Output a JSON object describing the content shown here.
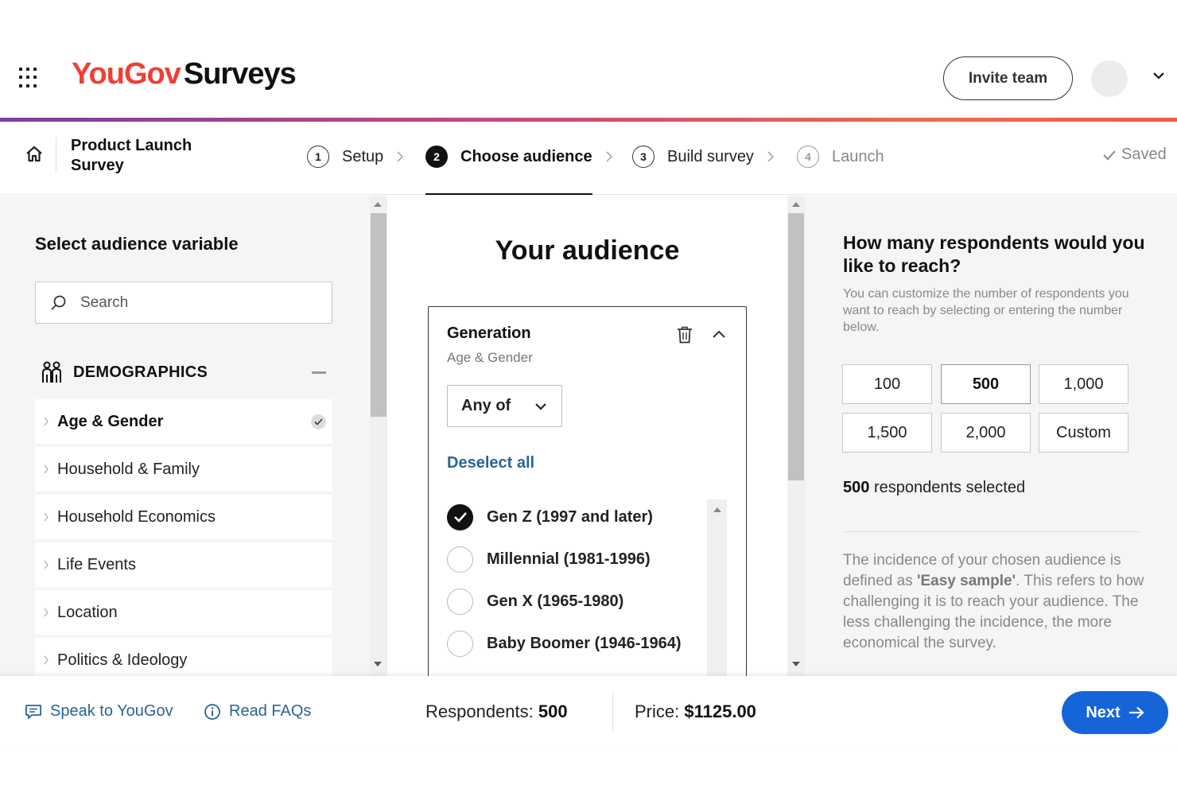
{
  "header": {
    "brand": "YouGov",
    "product": "Surveys",
    "invite_label": "Invite team"
  },
  "stepbar": {
    "project_title": "Product Launch Survey",
    "steps": [
      {
        "num": "1",
        "label": "Setup"
      },
      {
        "num": "2",
        "label": "Choose audience"
      },
      {
        "num": "3",
        "label": "Build survey"
      },
      {
        "num": "4",
        "label": "Launch"
      }
    ],
    "saved_label": "Saved"
  },
  "left": {
    "title": "Select audience variable",
    "search_placeholder": "Search",
    "section_label": "DEMOGRAPHICS",
    "categories": [
      {
        "label": "Age & Gender"
      },
      {
        "label": "Household & Family"
      },
      {
        "label": "Household Economics"
      },
      {
        "label": "Life Events"
      },
      {
        "label": "Location"
      },
      {
        "label": "Politics & Ideology"
      }
    ]
  },
  "middle": {
    "title": "Your audience",
    "card": {
      "title": "Generation",
      "subtitle": "Age & Gender",
      "mode": "Any of",
      "deselect_label": "Deselect all",
      "options": [
        {
          "label": "Gen Z (1997 and later)",
          "checked": true
        },
        {
          "label": "Millennial (1981-1996)",
          "checked": false
        },
        {
          "label": "Gen X (1965-1980)",
          "checked": false
        },
        {
          "label": "Baby Boomer (1946-1964)",
          "checked": false
        }
      ]
    }
  },
  "right": {
    "title": "How many respondents would you like to reach?",
    "description": "You can customize the number of respondents you want to reach by selecting or entering the number below.",
    "options": [
      "100",
      "500",
      "1,000",
      "1,500",
      "2,000",
      "Custom"
    ],
    "selected_count": "500",
    "selected_suffix": "respondents selected",
    "incidence_pre": "The incidence of your chosen audience is defined as ",
    "incidence_term": "'Easy sample'",
    "incidence_post": ". This refers to how challenging it is to reach your audience. The less challenging the incidence, the more economical the survey."
  },
  "footer": {
    "speak_label": "Speak to YouGov",
    "faq_label": "Read FAQs",
    "respondents_label": "Respondents:",
    "respondents_value": "500",
    "price_label": "Price:",
    "price_value": "$1125.00",
    "next_label": "Next"
  },
  "colors": {
    "brand_red": "#ee4036",
    "link_blue": "#2a6496",
    "next_blue": "#1565d8"
  }
}
